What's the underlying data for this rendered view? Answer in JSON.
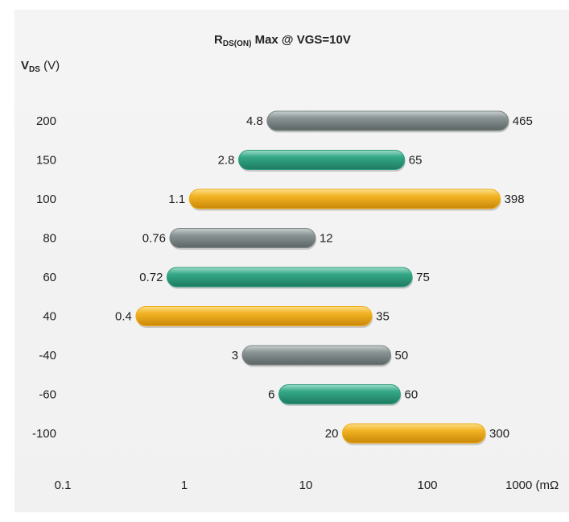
{
  "chart_data": {
    "type": "bar",
    "subtype": "range",
    "title": {
      "main": "R",
      "sub": "DS(ON)",
      "rest": " Max @ VGS=10V"
    },
    "ylabel": {
      "main": "V",
      "sub": "DS",
      "rest": " (V)"
    },
    "xlabel": "(mΩ)",
    "x_scale": "log",
    "xlim": [
      0.1,
      1000
    ],
    "x_ticks": [
      0.1,
      1,
      10,
      100,
      1000
    ],
    "x_tick_labels": [
      "0.1",
      "1",
      "10",
      "100",
      "1000 (mΩ"
    ],
    "grid": false,
    "colors": {
      "gray": "#7d8686",
      "green": "#2f9e81",
      "orange": "#f0ae1c"
    },
    "categories": [
      "200",
      "150",
      "100",
      "80",
      "60",
      "40",
      "-40",
      "-60",
      "-100"
    ],
    "series": [
      {
        "category": "200",
        "min": 4.8,
        "max": 465,
        "min_label": "4.8",
        "max_label": "465",
        "color": "gray"
      },
      {
        "category": "150",
        "min": 2.8,
        "max": 65,
        "min_label": "2.8",
        "max_label": "65",
        "color": "green"
      },
      {
        "category": "100",
        "min": 1.1,
        "max": 398,
        "min_label": "1.1",
        "max_label": "398",
        "color": "orange"
      },
      {
        "category": "80",
        "min": 0.76,
        "max": 12,
        "min_label": "0.76",
        "max_label": "12",
        "color": "gray"
      },
      {
        "category": "60",
        "min": 0.72,
        "max": 75,
        "min_label": "0.72",
        "max_label": "75",
        "color": "green"
      },
      {
        "category": "40",
        "min": 0.4,
        "max": 35,
        "min_label": "0.4",
        "max_label": "35",
        "color": "orange"
      },
      {
        "category": "-40",
        "min": 3,
        "max": 50,
        "min_label": "3",
        "max_label": "50",
        "color": "gray"
      },
      {
        "category": "-60",
        "min": 6,
        "max": 60,
        "min_label": "6",
        "max_label": "60",
        "color": "green"
      },
      {
        "category": "-100",
        "min": 20,
        "max": 300,
        "min_label": "20",
        "max_label": "300",
        "color": "orange"
      }
    ]
  }
}
